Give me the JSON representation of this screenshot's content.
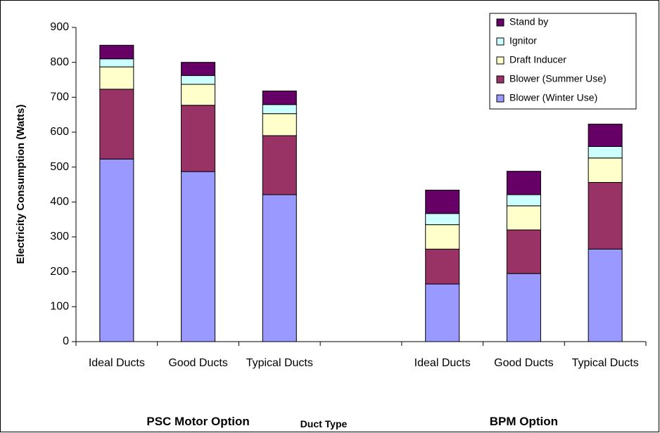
{
  "chart_data": {
    "type": "stacked_bar",
    "y_label": "Electricity Consumption (Watts)",
    "x_label": "Duct Type",
    "group_labels": [
      "PSC Motor Option",
      "BPM Option"
    ],
    "categories": [
      "Ideal Ducts",
      "Good Ducts",
      "Typical Ducts",
      null,
      "Ideal Ducts",
      "Good Ducts",
      "Typical Ducts"
    ],
    "series": [
      {
        "name": "Blower (Winter Use)",
        "color": "#9999ff",
        "values": [
          523,
          487,
          421,
          null,
          165,
          195,
          265
        ]
      },
      {
        "name": "Blower (Summer Use)",
        "color": "#993366",
        "values": [
          200,
          190,
          169,
          null,
          100,
          125,
          191
        ]
      },
      {
        "name": "Draft Inducer",
        "color": "#ffffcc",
        "values": [
          64,
          60,
          63,
          null,
          70,
          69,
          70
        ]
      },
      {
        "name": "Ignitor",
        "color": "#ccffff",
        "values": [
          23,
          25,
          26,
          null,
          32,
          32,
          33
        ]
      },
      {
        "name": "Stand by",
        "color": "#660066",
        "values": [
          39,
          38,
          39,
          null,
          67,
          67,
          64
        ]
      }
    ],
    "ylim": [
      0,
      900
    ],
    "yticks": [
      0,
      100,
      200,
      300,
      400,
      500,
      600,
      700,
      800,
      900
    ],
    "legend": "top-right"
  }
}
